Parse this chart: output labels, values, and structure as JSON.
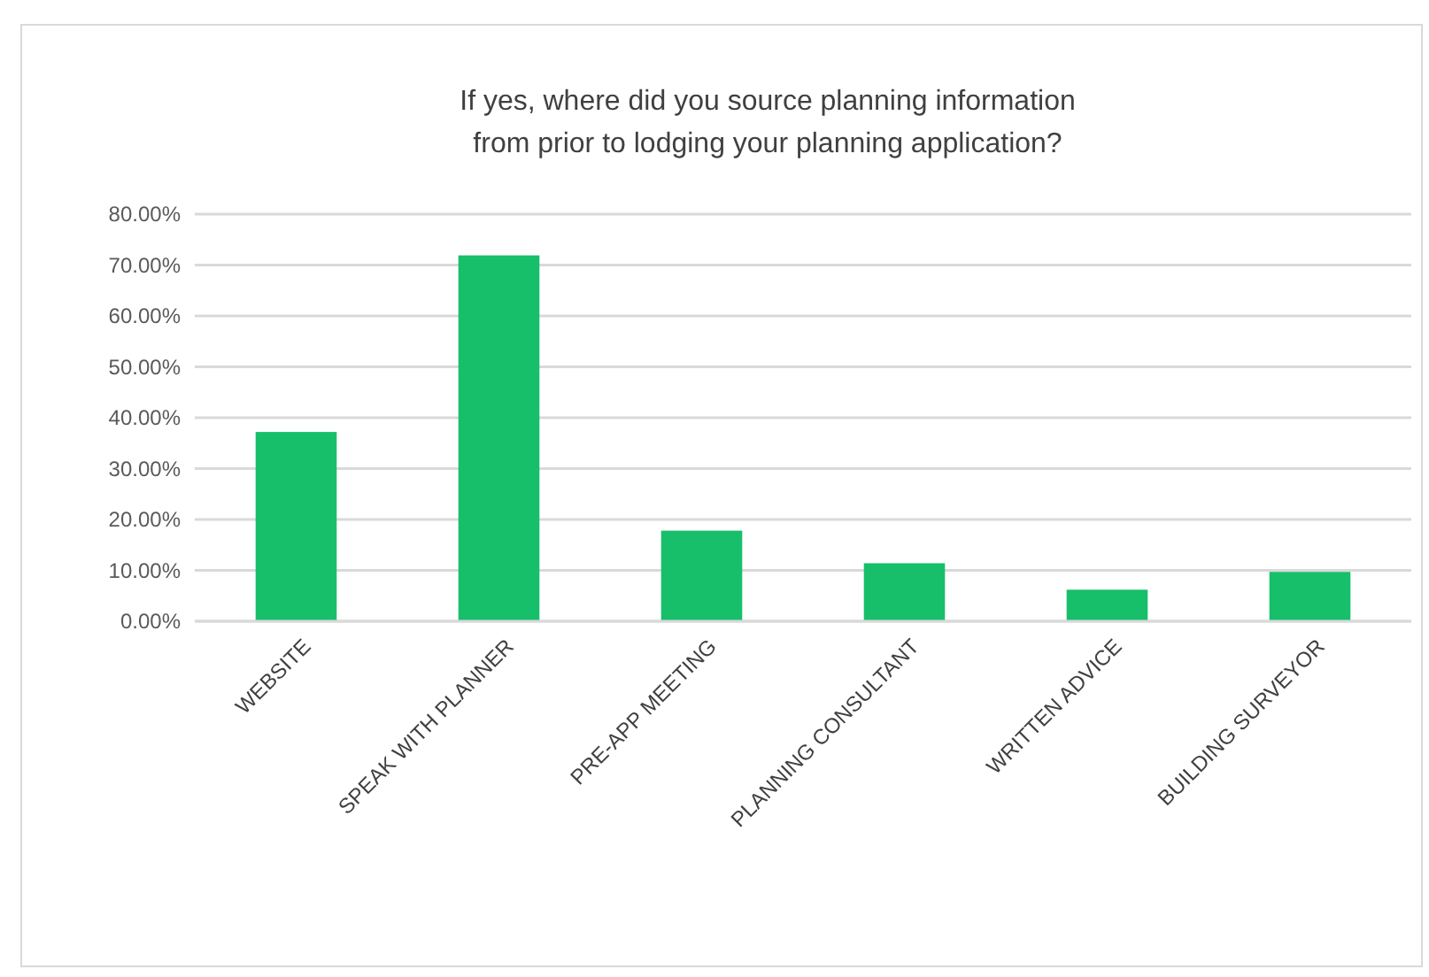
{
  "chart_data": {
    "type": "bar",
    "title": "If yes, where did you source planning information from prior to lodging your planning application?",
    "categories": [
      "WEBSITE",
      "SPEAK WITH PLANNER",
      "PRE-APP MEETING",
      "PLANNING CONSULTANT",
      "WRITTEN ADVICE",
      "BUILDING SURVEYOR"
    ],
    "values": [
      37.2,
      71.9,
      17.8,
      11.4,
      6.2,
      9.7
    ],
    "color": "#17bf6b",
    "ylim": [
      0,
      80
    ],
    "yticks": [
      {
        "value": 0,
        "label": "0.00%"
      },
      {
        "value": 10,
        "label": "10.00%"
      },
      {
        "value": 20,
        "label": "20.00%"
      },
      {
        "value": 30,
        "label": "30.00%"
      },
      {
        "value": 40,
        "label": "40.00%"
      },
      {
        "value": 50,
        "label": "50.00%"
      },
      {
        "value": 60,
        "label": "60.00%"
      },
      {
        "value": 70,
        "label": "70.00%"
      },
      {
        "value": 80,
        "label": "80.00%"
      }
    ],
    "grid": "y"
  }
}
